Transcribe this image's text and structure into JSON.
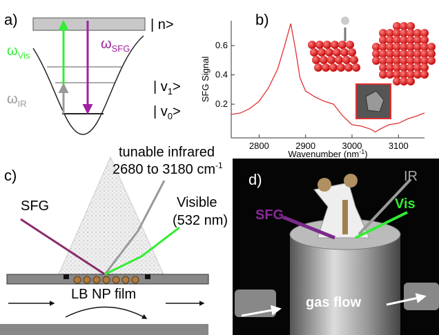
{
  "panel_a": {
    "label": "a)",
    "state_n": "| n>",
    "omega_vis": {
      "symbol": "ω",
      "sub": "Vis"
    },
    "omega_sfg": {
      "symbol": "ω",
      "sub": "SFG"
    },
    "omega_ir": {
      "symbol": "ω",
      "sub": "IR"
    },
    "state_v1": {
      "pre": "| v",
      "sub": "1",
      "post": ">"
    },
    "state_v0": {
      "pre": "| v",
      "sub": "0",
      "post": ">"
    }
  },
  "chart_data": {
    "type": "line",
    "panel_label": "b)",
    "x_label": {
      "text": "Wavenumber (nm",
      "sup": "-1",
      "post": ")"
    },
    "y_label": "SFG Signal",
    "xlim": [
      2740,
      3156
    ],
    "ylim": [
      -0.03,
      0.77
    ],
    "xticks": [
      2800,
      2900,
      3000,
      3100
    ],
    "yticks": [
      0.2,
      0.4,
      0.6
    ],
    "series": [
      {
        "name": "SFG",
        "color": "#e03030",
        "x": [
          2740,
          2760,
          2780,
          2800,
          2820,
          2840,
          2855,
          2868,
          2878,
          2888,
          2900,
          2920,
          2940,
          2960,
          2980,
          3000,
          3020,
          3040,
          3050,
          3060,
          3080,
          3100,
          3120,
          3140,
          3156
        ],
        "values": [
          0.13,
          0.14,
          0.17,
          0.22,
          0.31,
          0.44,
          0.6,
          0.75,
          0.58,
          0.38,
          0.29,
          0.25,
          0.22,
          0.2,
          0.12,
          0.06,
          0.05,
          0.03,
          0.01,
          0.03,
          0.06,
          0.07,
          0.1,
          0.12,
          0.14
        ]
      }
    ]
  },
  "panel_c": {
    "label": "c)",
    "ir_line1": "tunable infrared",
    "ir_line2": {
      "text": "2680 to 3180 cm",
      "sup": "-1"
    },
    "sfg": "SFG",
    "visible": "Visible",
    "wavelength": "(532 nm)",
    "film": "LB NP film"
  },
  "panel_d": {
    "label": "d)",
    "ir": "IR",
    "sfg": "SFG",
    "vis": "Vis",
    "flow": "gas flow"
  }
}
